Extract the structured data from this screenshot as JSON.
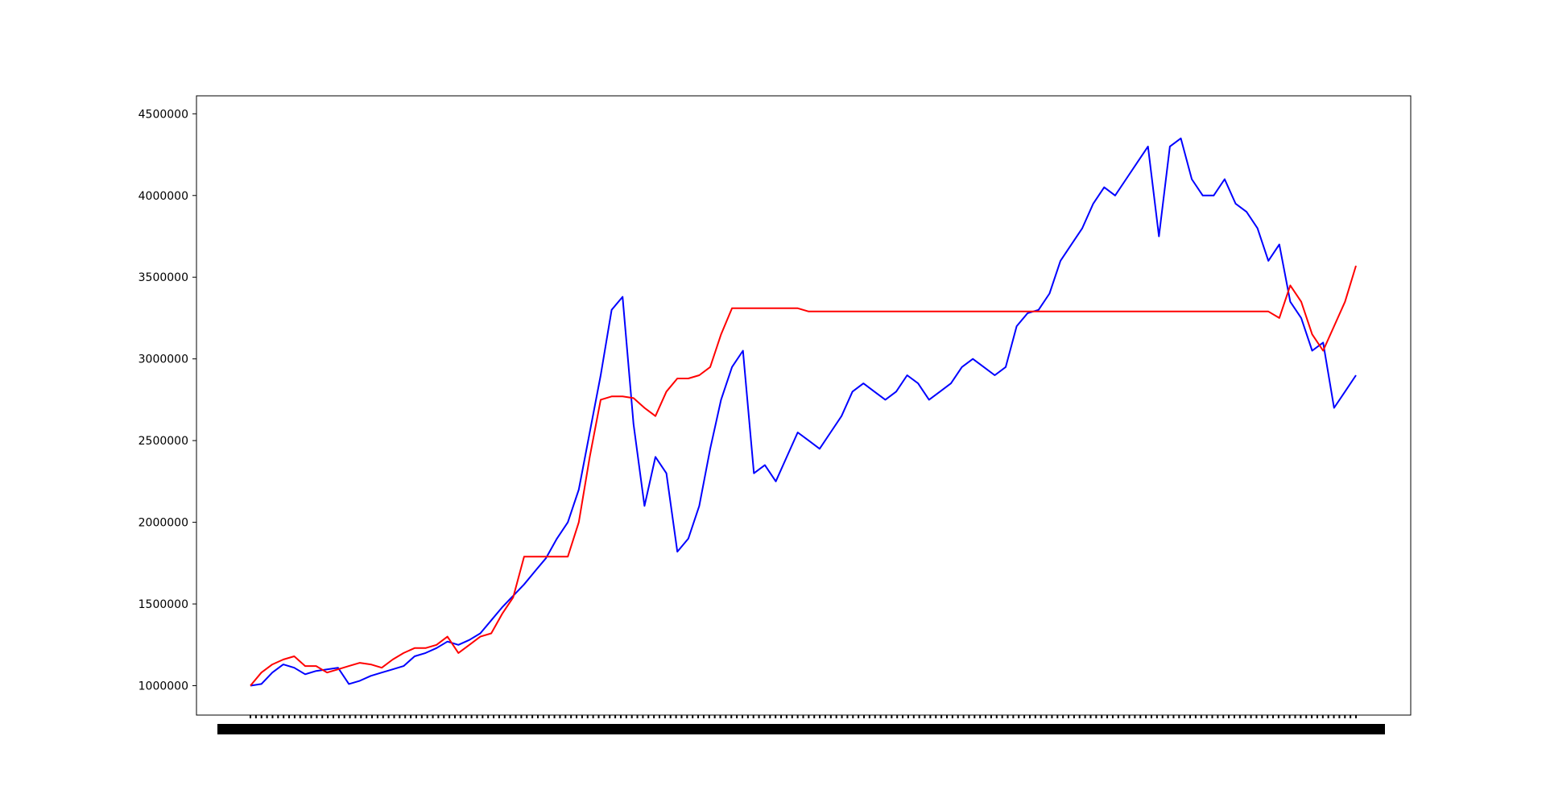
{
  "chart_data": {
    "type": "line",
    "title": "",
    "xlabel": "",
    "ylabel": "",
    "ylim": [
      820000,
      4610000
    ],
    "y_ticks": [
      1000000,
      1500000,
      2000000,
      2500000,
      3000000,
      3500000,
      4000000,
      4500000
    ],
    "y_tick_labels": [
      "1000000",
      "1500000",
      "2000000",
      "2500000",
      "3000000",
      "3500000",
      "4000000",
      "4500000"
    ],
    "x_tick_note": "dense, overlapping date tick labels (illegible)",
    "grid": false,
    "legend": "none",
    "x_index": [
      0,
      20,
      40,
      60,
      80,
      100,
      120,
      140,
      160,
      180,
      200,
      220,
      240,
      260,
      280,
      300,
      320,
      340,
      360,
      380,
      400,
      420,
      440,
      460,
      480,
      500,
      520,
      540,
      560,
      580,
      600,
      620,
      640,
      660,
      680,
      700,
      720,
      740,
      760,
      780,
      800,
      820,
      840,
      860,
      880,
      900,
      920,
      940,
      960,
      980,
      1000,
      1020,
      1040,
      1060,
      1080,
      1100,
      1120,
      1140,
      1160,
      1180,
      1200,
      1220,
      1240,
      1260,
      1280,
      1300,
      1320,
      1340,
      1360,
      1380,
      1400,
      1420,
      1440,
      1460,
      1480,
      1500,
      1520,
      1540,
      1560,
      1580,
      1600,
      1620,
      1640,
      1660,
      1680,
      1700,
      1720,
      1740,
      1760,
      1780,
      1800,
      1820,
      1840,
      1860,
      1880,
      1900,
      1920,
      1940,
      1960,
      1980,
      2000,
      2020
    ],
    "series": [
      {
        "color": "#0000ff",
        "values": [
          1000000,
          1010000,
          1080000,
          1130000,
          1110000,
          1070000,
          1090000,
          1100000,
          1110000,
          1010000,
          1030000,
          1060000,
          1080000,
          1100000,
          1120000,
          1180000,
          1200000,
          1230000,
          1270000,
          1250000,
          1280000,
          1320000,
          1400000,
          1480000,
          1550000,
          1620000,
          1700000,
          1780000,
          1900000,
          2000000,
          2200000,
          2550000,
          2900000,
          3300000,
          3380000,
          2600000,
          2100000,
          2400000,
          2300000,
          1820000,
          1900000,
          2100000,
          2450000,
          2750000,
          2950000,
          3050000,
          2300000,
          2350000,
          2250000,
          2400000,
          2550000,
          2500000,
          2450000,
          2550000,
          2650000,
          2800000,
          2850000,
          2800000,
          2750000,
          2800000,
          2900000,
          2850000,
          2750000,
          2800000,
          2850000,
          2950000,
          3000000,
          2950000,
          2900000,
          2950000,
          3200000,
          3280000,
          3300000,
          3400000,
          3600000,
          3700000,
          3800000,
          3950000,
          4050000,
          4000000,
          4100000,
          4200000,
          4300000,
          3750000,
          4300000,
          4350000,
          4100000,
          4000000,
          4000000,
          4100000,
          3950000,
          3900000,
          3800000,
          3600000,
          3700000,
          3350000,
          3250000,
          3050000,
          3100000,
          2700000,
          2800000,
          2900000
        ]
      },
      {
        "color": "#ff0000",
        "values": [
          1000000,
          1080000,
          1130000,
          1160000,
          1180000,
          1120000,
          1120000,
          1080000,
          1100000,
          1120000,
          1140000,
          1130000,
          1110000,
          1160000,
          1200000,
          1230000,
          1230000,
          1250000,
          1300000,
          1200000,
          1250000,
          1300000,
          1320000,
          1440000,
          1540000,
          1790000,
          1790000,
          1790000,
          1790000,
          1790000,
          2000000,
          2400000,
          2750000,
          2770000,
          2770000,
          2760000,
          2700000,
          2650000,
          2800000,
          2880000,
          2880000,
          2900000,
          2950000,
          3150000,
          3310000,
          3310000,
          3310000,
          3310000,
          3310000,
          3310000,
          3310000,
          3290000,
          3290000,
          3290000,
          3290000,
          3290000,
          3290000,
          3290000,
          3290000,
          3290000,
          3290000,
          3290000,
          3290000,
          3290000,
          3290000,
          3290000,
          3290000,
          3290000,
          3290000,
          3290000,
          3290000,
          3290000,
          3290000,
          3290000,
          3290000,
          3290000,
          3290000,
          3290000,
          3290000,
          3290000,
          3290000,
          3290000,
          3290000,
          3290000,
          3290000,
          3290000,
          3290000,
          3290000,
          3290000,
          3290000,
          3290000,
          3290000,
          3290000,
          3290000,
          3250000,
          3450000,
          3350000,
          3150000,
          3050000,
          3200000,
          3350000,
          3570000
        ]
      }
    ]
  }
}
